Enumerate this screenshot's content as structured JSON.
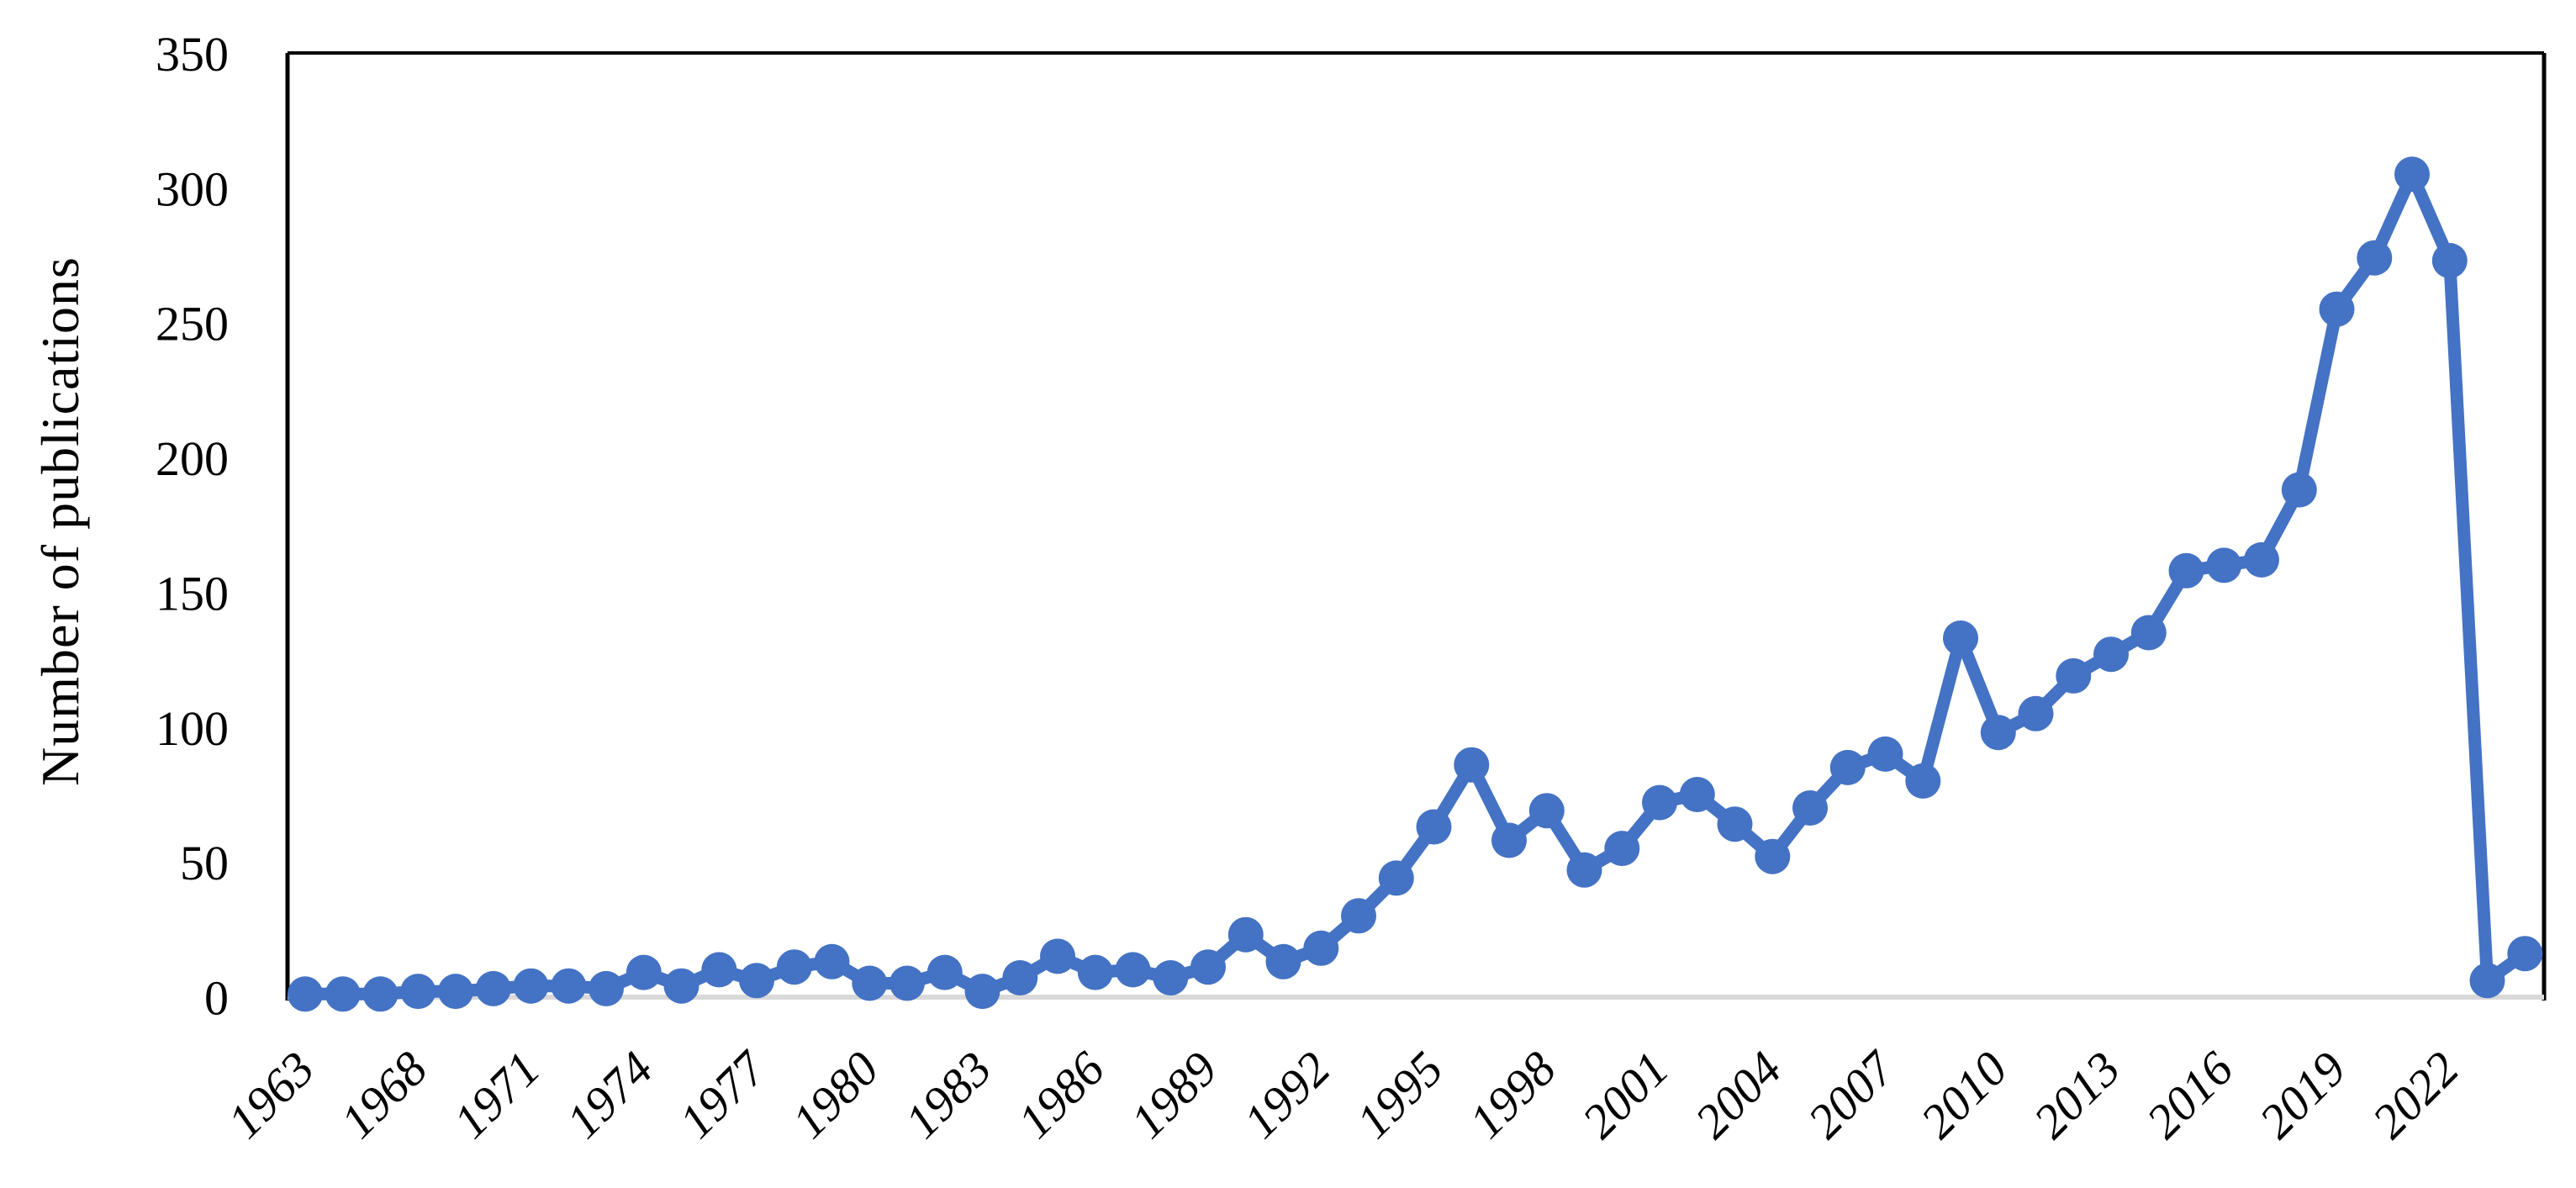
{
  "chart_data": {
    "type": "line",
    "title": "",
    "xlabel": "",
    "ylabel": "Number of publications",
    "ylim": [
      0,
      350
    ],
    "yticks": [
      "0",
      "50",
      "100",
      "150",
      "200",
      "250",
      "300",
      "350"
    ],
    "ytick_values": [
      0,
      50,
      100,
      150,
      200,
      250,
      300,
      350
    ],
    "xtick_labels": [
      "1963",
      "1968",
      "1971",
      "1974",
      "1977",
      "1980",
      "1983",
      "1986",
      "1989",
      "1992",
      "1995",
      "1998",
      "2001",
      "2004",
      "2007",
      "2010",
      "2013",
      "2016",
      "2019",
      "2022"
    ],
    "xtick_interval": 3,
    "grid": false,
    "legend_position": "none",
    "series": [
      {
        "name": "Number of publications",
        "color": "#4472C4",
        "x": [
          1963,
          1965,
          1967,
          1968,
          1969,
          1970,
          1971,
          1972,
          1973,
          1974,
          1975,
          1976,
          1977,
          1978,
          1979,
          1980,
          1981,
          1982,
          1983,
          1984,
          1985,
          1986,
          1987,
          1988,
          1989,
          1990,
          1991,
          1992,
          1993,
          1994,
          1995,
          1996,
          1997,
          1998,
          1999,
          2000,
          2001,
          2002,
          2003,
          2004,
          2005,
          2006,
          2007,
          2008,
          2009,
          2010,
          2011,
          2012,
          2013,
          2014,
          2015,
          2016,
          2017,
          2018,
          2019,
          2020,
          2021,
          2022,
          2023,
          2024
        ],
        "y": [
          1,
          1,
          1,
          2,
          2,
          3,
          4,
          4,
          3,
          9,
          4,
          10,
          6,
          11,
          13,
          5,
          5,
          9,
          2,
          7,
          15,
          9,
          10,
          7,
          11,
          23,
          13,
          18,
          30,
          44,
          63,
          86,
          58,
          69,
          47,
          55,
          72,
          75,
          64,
          52,
          70,
          85,
          90,
          80,
          133,
          98,
          105,
          119,
          127,
          135,
          158,
          160,
          162,
          188,
          255,
          274,
          305,
          273,
          6,
          16
        ]
      }
    ]
  },
  "styles": {
    "line_color": "#4472C4",
    "marker_color": "#4472C4",
    "frame_color": "#000000",
    "category_axis_color": "#D9D9D9",
    "text_color": "#000000",
    "background": "#FFFFFF"
  }
}
